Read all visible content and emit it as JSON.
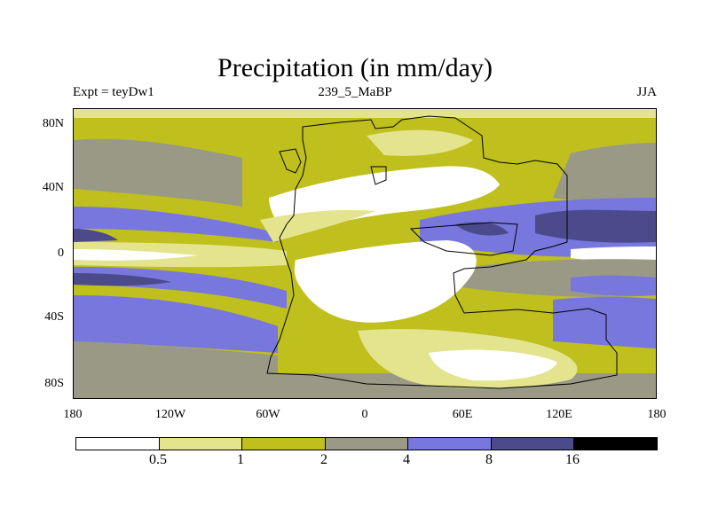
{
  "title": "Precipitation (in mm/day)",
  "subtitle_left": "Expt = teyDw1",
  "subtitle_center": "239_5_MaBP",
  "subtitle_right": "JJA",
  "lat_ticks": [
    "80N",
    "40N",
    "0",
    "40S",
    "80S"
  ],
  "lon_ticks": [
    "180",
    "120W",
    "60W",
    "0",
    "60E",
    "120E",
    "180"
  ],
  "colorbar": {
    "labels": [
      "0.5",
      "1",
      "2",
      "4",
      "8",
      "16"
    ],
    "colors": [
      "#ffffff",
      "#e4e48e",
      "#bfbf1e",
      "#999986",
      "#7777dd",
      "#4b4b8b",
      "#000000"
    ]
  },
  "palette": {
    "white": "#ffffff",
    "lightyellow": "#e4e48e",
    "olive": "#bfbf1e",
    "gray": "#999986",
    "lightblue": "#7777dd",
    "navy": "#4b4b8b"
  }
}
